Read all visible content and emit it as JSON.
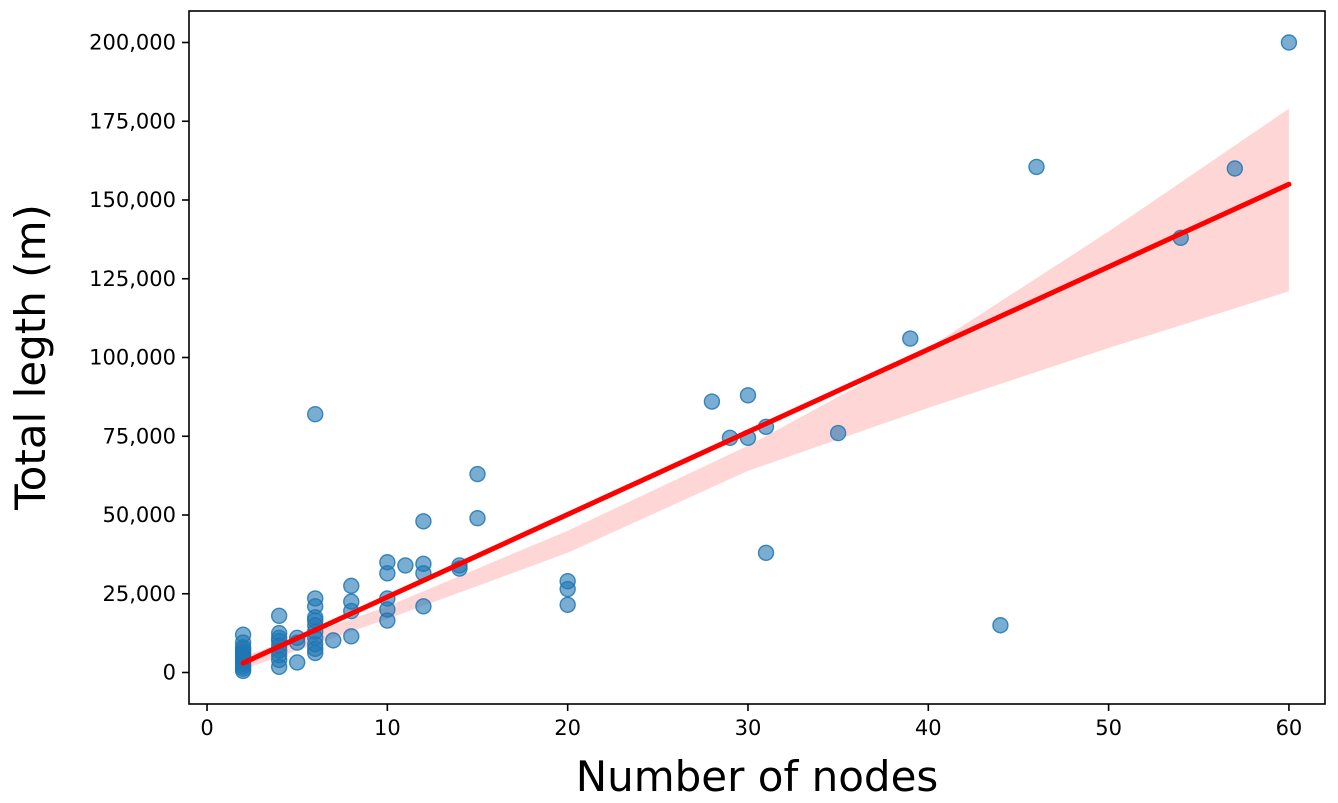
{
  "chart_data": {
    "type": "scatter",
    "title": "",
    "xlabel": "Number of nodes",
    "ylabel": "Total legth (m)",
    "xlim": [
      -1,
      62
    ],
    "ylim": [
      -10000,
      210000
    ],
    "x_ticks": [
      0,
      10,
      20,
      30,
      40,
      50,
      60
    ],
    "x_tick_labels": [
      "0",
      "10",
      "20",
      "30",
      "40",
      "50",
      "60"
    ],
    "y_ticks": [
      0,
      25000,
      50000,
      75000,
      100000,
      125000,
      150000,
      175000,
      200000
    ],
    "y_tick_labels": [
      "0",
      "25,000",
      "50,000",
      "75,000",
      "100,000",
      "125,000",
      "150,000",
      "175,000",
      "200,000"
    ],
    "grid": false,
    "legend": "none",
    "colors": {
      "points": "#1f77b4",
      "fit_line": "#ff0000",
      "confidence_band": "#ffc0c0"
    },
    "series": [
      {
        "kind": "scatter",
        "points": [
          [
            2,
            500
          ],
          [
            2,
            1200
          ],
          [
            2,
            2000
          ],
          [
            2,
            2800
          ],
          [
            2,
            3500
          ],
          [
            2,
            4200
          ],
          [
            2,
            5000
          ],
          [
            2,
            5800
          ],
          [
            2,
            6500
          ],
          [
            2,
            7300
          ],
          [
            2,
            8000
          ],
          [
            2,
            9500
          ],
          [
            2,
            12000
          ],
          [
            4,
            1800
          ],
          [
            4,
            4000
          ],
          [
            4,
            5500
          ],
          [
            4,
            7000
          ],
          [
            4,
            8500
          ],
          [
            4,
            10000
          ],
          [
            4,
            11000
          ],
          [
            4,
            12500
          ],
          [
            4,
            18000
          ],
          [
            5,
            3200
          ],
          [
            5,
            9500
          ],
          [
            5,
            11000
          ],
          [
            6,
            6200
          ],
          [
            6,
            7500
          ],
          [
            6,
            9000
          ],
          [
            6,
            11000
          ],
          [
            6,
            13000
          ],
          [
            6,
            15000
          ],
          [
            6,
            16500
          ],
          [
            6,
            17500
          ],
          [
            6,
            21000
          ],
          [
            6,
            23500
          ],
          [
            6,
            82000
          ],
          [
            7,
            10200
          ],
          [
            8,
            11500
          ],
          [
            8,
            19500
          ],
          [
            8,
            22500
          ],
          [
            8,
            27500
          ],
          [
            10,
            16500
          ],
          [
            10,
            20000
          ],
          [
            10,
            23500
          ],
          [
            10,
            31500
          ],
          [
            10,
            35000
          ],
          [
            11,
            34000
          ],
          [
            12,
            21000
          ],
          [
            12,
            31500
          ],
          [
            12,
            34500
          ],
          [
            12,
            48000
          ],
          [
            14,
            33000
          ],
          [
            14,
            34000
          ],
          [
            15,
            49000
          ],
          [
            15,
            63000
          ],
          [
            20,
            21500
          ],
          [
            20,
            26500
          ],
          [
            20,
            29000
          ],
          [
            28,
            86000
          ],
          [
            29,
            74500
          ],
          [
            30,
            74500
          ],
          [
            30,
            88000
          ],
          [
            31,
            78000
          ],
          [
            31,
            38000
          ],
          [
            35,
            76000
          ],
          [
            39,
            106000
          ],
          [
            44,
            15000
          ],
          [
            46,
            160500
          ],
          [
            54,
            138000
          ],
          [
            57,
            160000
          ],
          [
            60,
            200000
          ]
        ]
      },
      {
        "kind": "regression",
        "line": [
          [
            2,
            3000
          ],
          [
            60,
            155000
          ]
        ],
        "band_upper": [
          [
            2,
            5000
          ],
          [
            10,
            21000
          ],
          [
            20,
            45000
          ],
          [
            30,
            72000
          ],
          [
            40,
            103000
          ],
          [
            50,
            140000
          ],
          [
            60,
            179000
          ]
        ],
        "band_lower": [
          [
            2,
            1000
          ],
          [
            10,
            17000
          ],
          [
            20,
            38000
          ],
          [
            30,
            64000
          ],
          [
            40,
            84000
          ],
          [
            50,
            103000
          ],
          [
            60,
            121000
          ]
        ]
      }
    ]
  }
}
